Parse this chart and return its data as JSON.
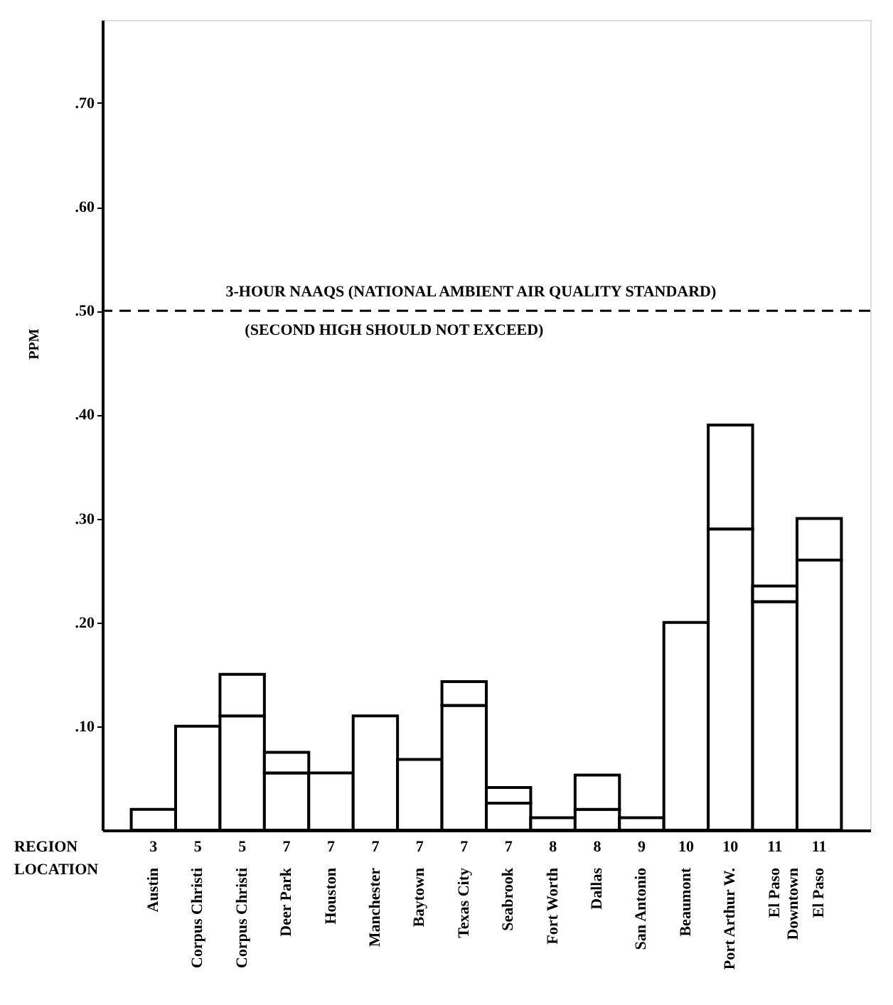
{
  "chart_data": {
    "type": "bar",
    "stacked": true,
    "ylabel": "PPM",
    "categories": [
      "Austin",
      "Corpus Christi",
      "Corpus Christi",
      "Deer Park",
      "Houston",
      "Manchester",
      "Baytown",
      "Texas City",
      "Seabrook",
      "Fort Worth",
      "Dallas",
      "San Antonio",
      "Beaumont",
      "Port Arthur W.",
      "El Paso\nDowntown",
      "El Paso"
    ],
    "series": [
      {
        "color": "#ffffff",
        "values": [
          0.02,
          0.1,
          0.11,
          0.055,
          0.055,
          0.11,
          0.068,
          0.12,
          0.026,
          0.012,
          0.02,
          0.012,
          0.2,
          0.29,
          0.22,
          0.26
        ]
      },
      {
        "color": "#ffffff",
        "values": [
          null,
          null,
          0.04,
          0.02,
          null,
          null,
          null,
          0.023,
          0.015,
          null,
          0.033,
          null,
          null,
          0.1,
          0.015,
          0.04
        ]
      }
    ],
    "ylim": [
      0,
      0.78
    ],
    "yticks": [
      {
        "value": 0.1,
        "label": ".10"
      },
      {
        "value": 0.2,
        "label": ".20"
      },
      {
        "value": 0.3,
        "label": ".30"
      },
      {
        "value": 0.4,
        "label": ".40"
      },
      {
        "value": 0.5,
        "label": ".50"
      },
      {
        "value": 0.6,
        "label": ".60"
      },
      {
        "value": 0.7,
        "label": ".70"
      }
    ],
    "ref_lines": [
      {
        "axis": "y",
        "value": 0.5,
        "label": "3-HOUR NAAQS (NATIONAL AMBIENT AIR QUALITY STANDARD)",
        "line_style": "dashed",
        "color": "#000000"
      }
    ],
    "annotations": [
      {
        "text": "(SECOND HIGH SHOULD NOT EXCEED)",
        "y": 0.5
      },
      "REGION",
      "LOCATION",
      "3",
      "5",
      "5",
      "7",
      "7",
      "7",
      "7",
      "7",
      "7",
      "8",
      "8",
      "9",
      "10",
      "10",
      "11",
      "11"
    ],
    "tick_labels": true
  }
}
